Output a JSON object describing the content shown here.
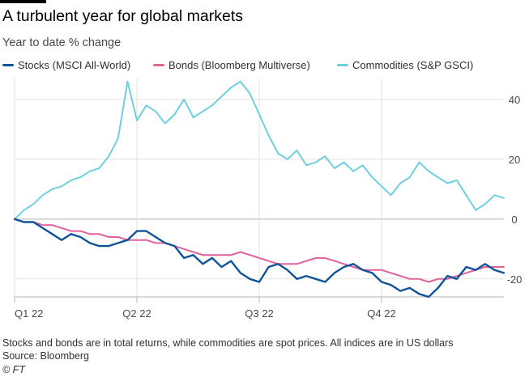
{
  "header": {
    "title": "A turbulent year for global markets",
    "subtitle": "Year to date % change"
  },
  "footer": {
    "note": "Stocks and bonds are in total returns, while commodities are spot prices. All indices are in US dollars",
    "source": "Source: Bloomberg",
    "credit": "© FT"
  },
  "chart_data": {
    "type": "line",
    "x_unit": "trading week of 2022",
    "xlim": [
      0,
      52
    ],
    "ylim": [
      -26,
      47
    ],
    "y_ticks": [
      40,
      20,
      0,
      -20
    ],
    "y_tick_labels": [
      "40",
      "20",
      "0",
      "-20"
    ],
    "x_ticks": [
      0,
      13,
      26,
      39
    ],
    "x_tick_labels": [
      "Q1 22",
      "Q2 22",
      "Q3 22",
      "Q4 22"
    ],
    "grid": true,
    "legend_position": "top-left",
    "series": [
      {
        "name": "Stocks (MSCI All-World)",
        "color": "#0f5499",
        "x": [
          0,
          1,
          2,
          3,
          4,
          5,
          6,
          7,
          8,
          9,
          10,
          11,
          12,
          13,
          14,
          15,
          16,
          17,
          18,
          19,
          20,
          21,
          22,
          23,
          24,
          25,
          26,
          27,
          28,
          29,
          30,
          31,
          32,
          33,
          34,
          35,
          36,
          37,
          38,
          39,
          40,
          41,
          42,
          43,
          44,
          45,
          46,
          47,
          48,
          49,
          50,
          51,
          52
        ],
        "y": [
          0,
          -1,
          -1,
          -3,
          -5,
          -7,
          -5,
          -6,
          -8,
          -9,
          -9,
          -8,
          -7,
          -4,
          -4,
          -6,
          -8,
          -9,
          -13,
          -12,
          -15,
          -13,
          -16,
          -14,
          -18,
          -20,
          -21,
          -16,
          -15,
          -17,
          -20,
          -19,
          -20,
          -21,
          -18,
          -16,
          -15,
          -17,
          -18,
          -21,
          -22,
          -24,
          -23,
          -25,
          -26,
          -23,
          -19,
          -20,
          -16,
          -17,
          -15,
          -17,
          -18
        ]
      },
      {
        "name": "Bonds (Bloomberg Multiverse)",
        "color": "#e3619b",
        "x": [
          0,
          1,
          2,
          3,
          4,
          5,
          6,
          7,
          8,
          9,
          10,
          11,
          12,
          13,
          14,
          15,
          16,
          17,
          18,
          19,
          20,
          21,
          22,
          23,
          24,
          25,
          26,
          27,
          28,
          29,
          30,
          31,
          32,
          33,
          34,
          35,
          36,
          37,
          38,
          39,
          40,
          41,
          42,
          43,
          44,
          45,
          46,
          47,
          48,
          49,
          50,
          51,
          52
        ],
        "y": [
          0,
          -1,
          -1,
          -2,
          -2,
          -3,
          -4,
          -4,
          -5,
          -5,
          -6,
          -6,
          -7,
          -7,
          -7,
          -8,
          -8,
          -9,
          -10,
          -11,
          -12,
          -12,
          -12,
          -12,
          -11,
          -12,
          -13,
          -14,
          -15,
          -15,
          -15,
          -14,
          -13,
          -13,
          -14,
          -15,
          -16,
          -17,
          -17,
          -17,
          -18,
          -19,
          -20,
          -20,
          -21,
          -20,
          -20,
          -19,
          -18,
          -17,
          -16,
          -16,
          -16
        ]
      },
      {
        "name": "Commodities (S&P GSCI)",
        "color": "#6fcfe0",
        "x": [
          0,
          1,
          2,
          3,
          4,
          5,
          6,
          7,
          8,
          9,
          10,
          11,
          12,
          13,
          14,
          15,
          16,
          17,
          18,
          19,
          20,
          21,
          22,
          23,
          24,
          25,
          26,
          27,
          28,
          29,
          30,
          31,
          32,
          33,
          34,
          35,
          36,
          37,
          38,
          39,
          40,
          41,
          42,
          43,
          44,
          45,
          46,
          47,
          48,
          49,
          50,
          51,
          52
        ],
        "y": [
          0,
          3,
          5,
          8,
          10,
          11,
          13,
          14,
          16,
          17,
          21,
          27,
          46,
          33,
          38,
          36,
          32,
          35,
          40,
          34,
          36,
          38,
          41,
          44,
          46,
          42,
          35,
          28,
          22,
          20,
          23,
          18,
          19,
          21,
          17,
          19,
          16,
          18,
          14,
          11,
          8,
          12,
          14,
          19,
          16,
          14,
          12,
          13,
          8,
          3,
          5,
          8,
          7
        ]
      }
    ]
  }
}
